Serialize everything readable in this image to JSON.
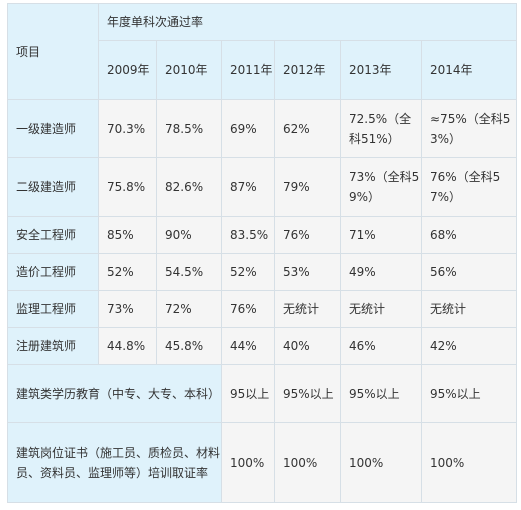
{
  "table": {
    "row_header": "项目",
    "group_header": "年度单科次通过率",
    "years": [
      "2009年",
      "2010年",
      "2011年",
      "2012年",
      "2013年",
      "2014年"
    ],
    "rows": [
      {
        "label": "一级建造师",
        "values": [
          "70.3%",
          "78.5%",
          "69%",
          "62%",
          "72.5%（全科51%）",
          "≈75%（全科53%）"
        ]
      },
      {
        "label": "二级建造师",
        "values": [
          "75.8%",
          "82.6%",
          "87%",
          "79%",
          "73%（全科59%）",
          "76%（全科57%）"
        ]
      },
      {
        "label": "安全工程师",
        "values": [
          "85%",
          "90%",
          "83.5%",
          "76%",
          "71%",
          "68%"
        ]
      },
      {
        "label": "造价工程师",
        "values": [
          "52%",
          "54.5%",
          "52%",
          "53%",
          "49%",
          "56%"
        ]
      },
      {
        "label": "监理工程师",
        "values": [
          "73%",
          "72%",
          "76%",
          "无统计",
          "无统计",
          "无统计"
        ]
      },
      {
        "label": "注册建筑师",
        "values": [
          "44.8%",
          "45.8%",
          "44%",
          "40%",
          "46%",
          "42%"
        ]
      }
    ],
    "span_rows": [
      {
        "label": "建筑类学历教育（中专、大专、本科）",
        "values": [
          "95以上",
          "95%以上",
          "95%以上",
          "95%以上"
        ]
      },
      {
        "label": "建筑岗位证书（施工员、质检员、材料员、资料员、监理师等）培训取证率",
        "values": [
          "100%",
          "100%",
          "100%",
          "100%"
        ]
      }
    ]
  }
}
